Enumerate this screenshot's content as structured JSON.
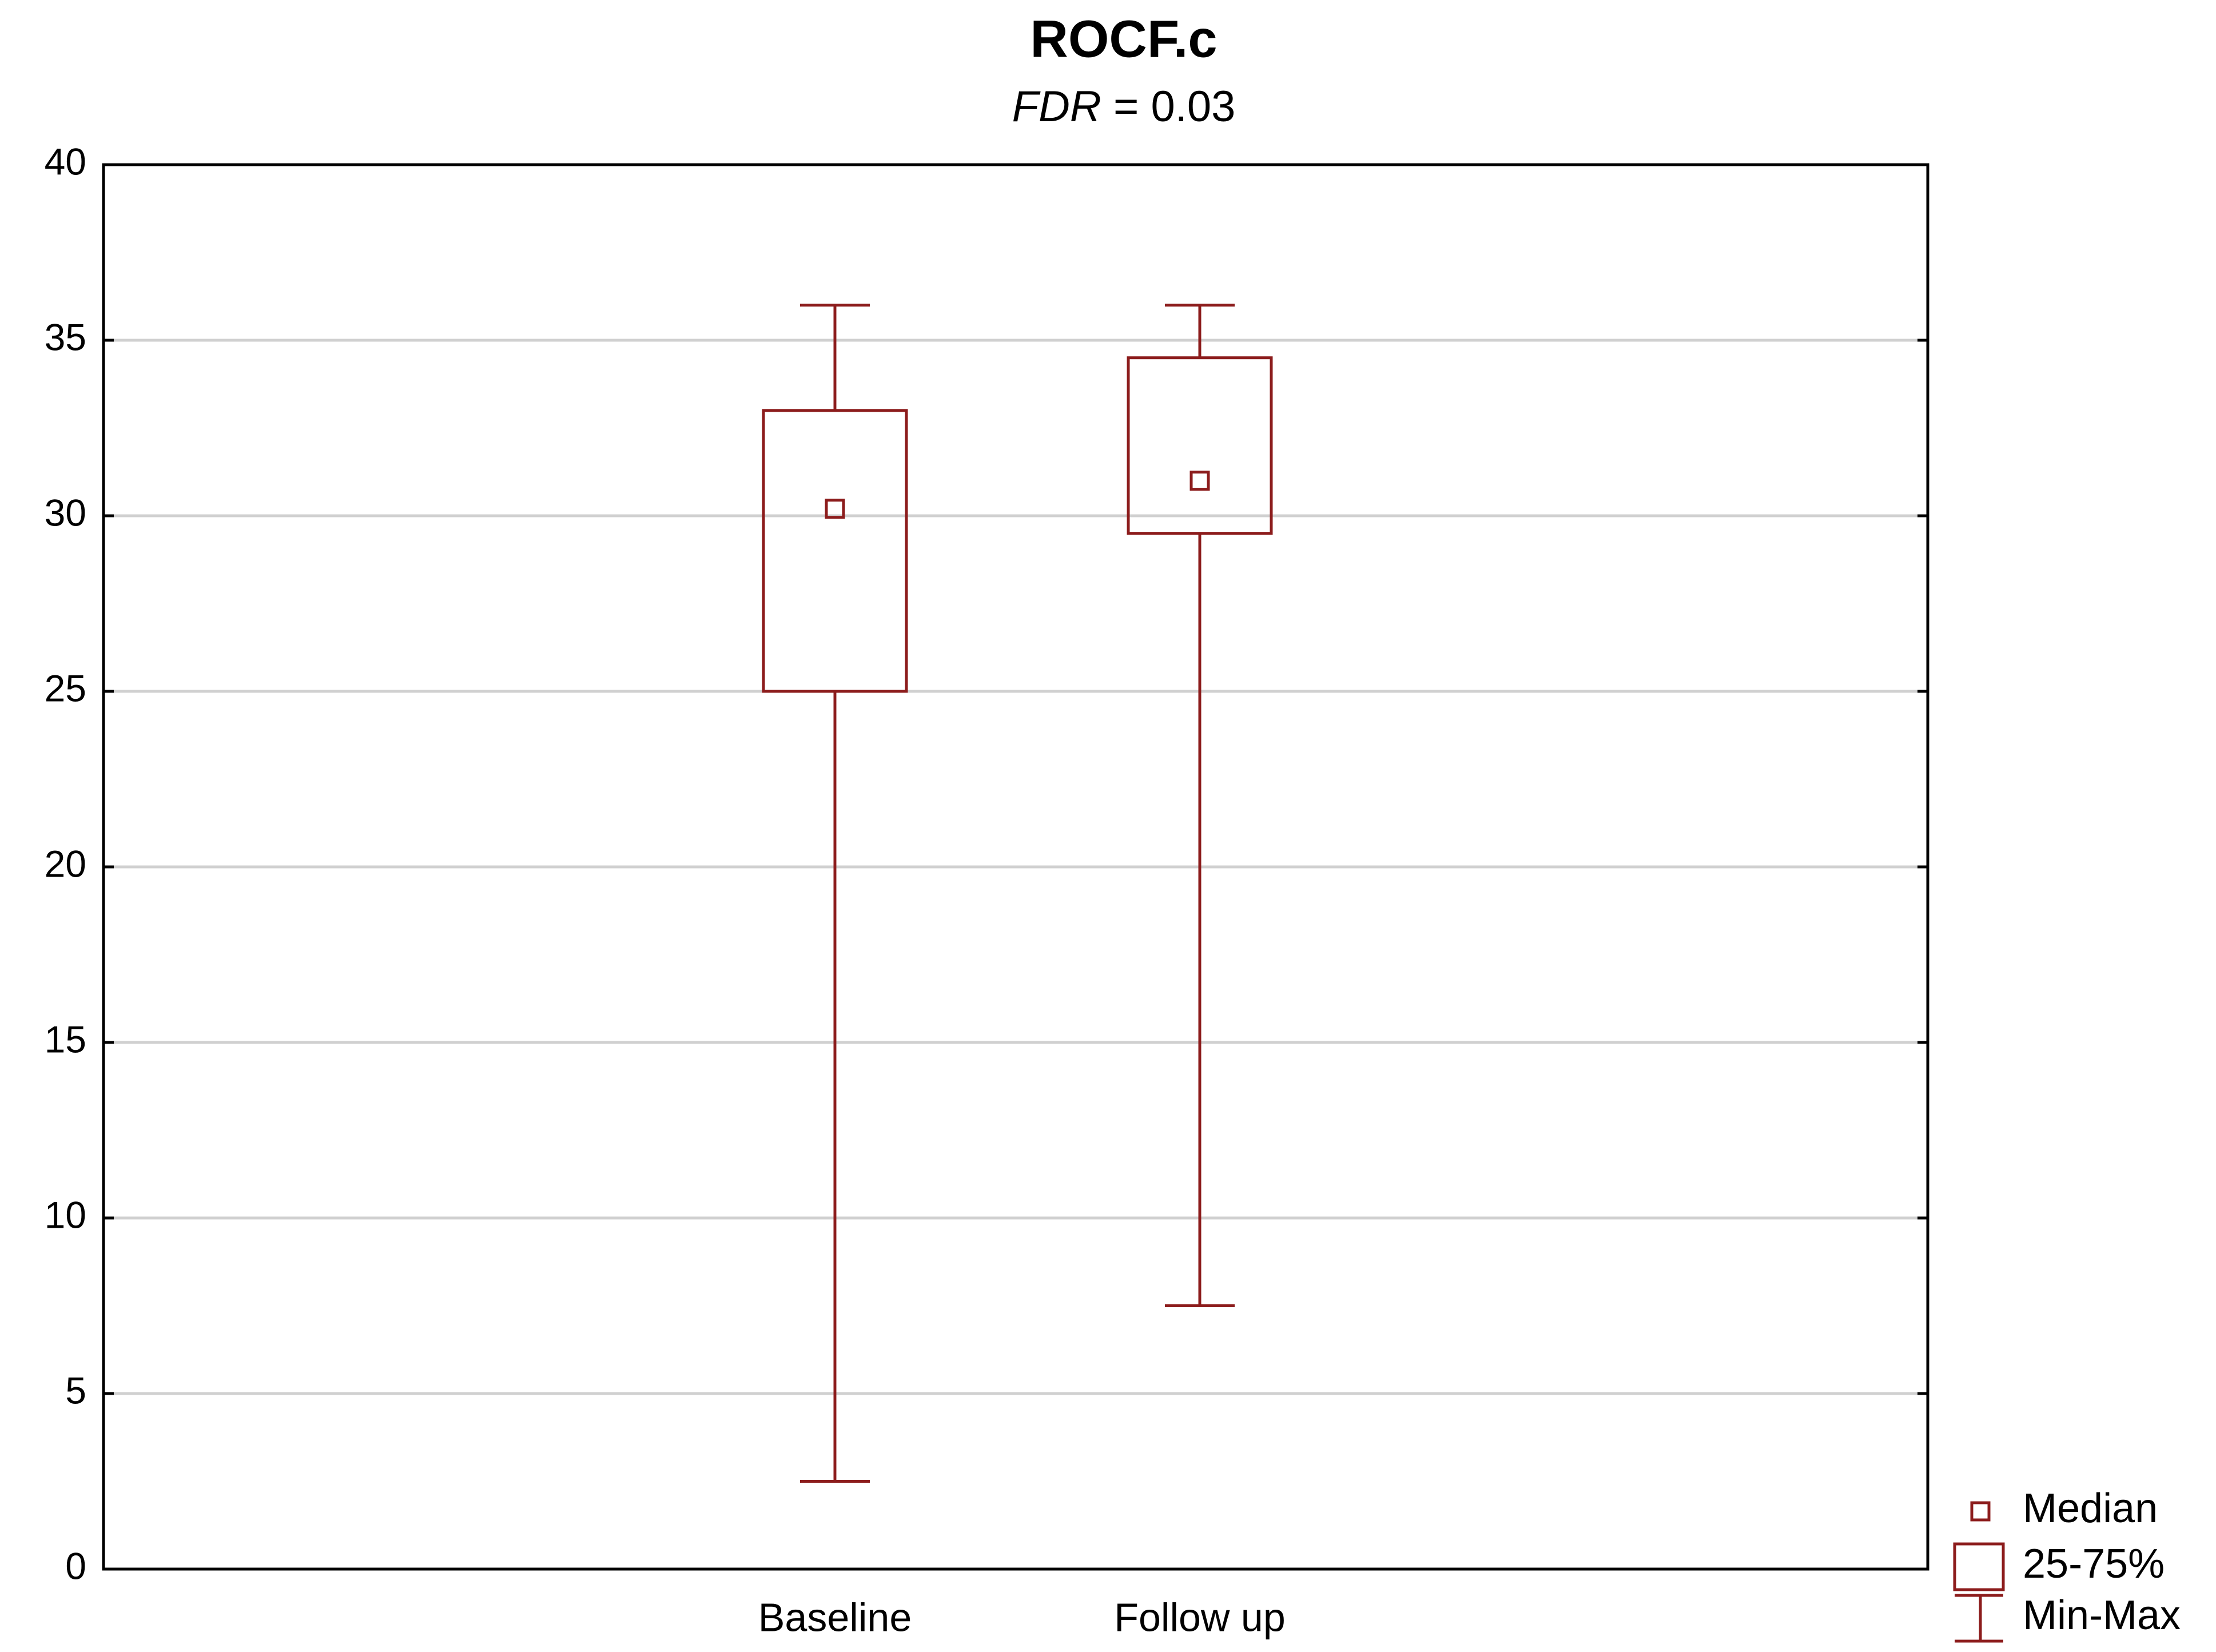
{
  "chart_data": {
    "type": "box",
    "title": "ROCF.c",
    "subtitle": [
      "FDR",
      " = 0.03"
    ],
    "categories": [
      "Baseline",
      "Follow up"
    ],
    "min": [
      2.5,
      7.5
    ],
    "q1": [
      25,
      29.5
    ],
    "median": [
      30.2,
      31
    ],
    "q3": [
      33,
      34.5
    ],
    "max": [
      36,
      36
    ],
    "color": "#8c1c1c",
    "ylim": [
      0,
      40
    ],
    "yticks": [
      0,
      5,
      10,
      15,
      20,
      25,
      30,
      35,
      40
    ],
    "grid": true,
    "legend": [
      "Median",
      "25-75%",
      "Min-Max"
    ],
    "legend_position": "bottom-right"
  }
}
